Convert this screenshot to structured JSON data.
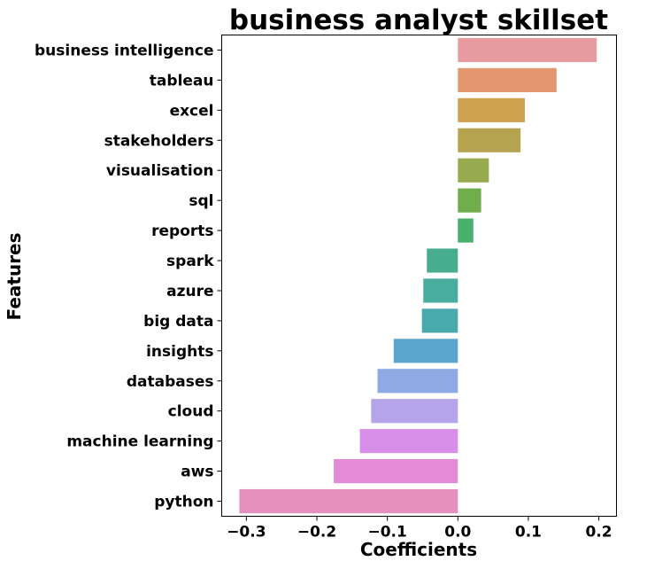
{
  "chart_data": {
    "type": "bar",
    "orientation": "horizontal",
    "title": "business analyst skillset",
    "xlabel": "Coefficients",
    "ylabel": "Features",
    "xlim": [
      -0.335,
      0.225
    ],
    "xticks": [
      -0.3,
      -0.2,
      -0.1,
      0.0,
      0.1,
      0.2
    ],
    "xtick_labels": [
      "−0.3",
      "−0.2",
      "−0.1",
      "0.0",
      "0.1",
      "0.2"
    ],
    "grid": false,
    "legend": "none",
    "categories": [
      "business intelligence",
      "tableau",
      "excel",
      "stakeholders",
      "visualisation",
      "sql",
      "reports",
      "spark",
      "azure",
      "big data",
      "insights",
      "databases",
      "cloud",
      "machine learning",
      "aws",
      "python"
    ],
    "values": [
      0.197,
      0.14,
      0.095,
      0.089,
      0.044,
      0.033,
      0.022,
      -0.044,
      -0.049,
      -0.051,
      -0.091,
      -0.114,
      -0.123,
      -0.139,
      -0.176,
      -0.31
    ],
    "colors": [
      "#e89aa1",
      "#e4966f",
      "#cfa04f",
      "#b5a34f",
      "#97aa4f",
      "#6fad4d",
      "#4aaf6d",
      "#47ad8e",
      "#48ad9f",
      "#4aa9ad",
      "#5aa5cb",
      "#8ea9e4",
      "#b6a4ea",
      "#d68ee8",
      "#e58bd5",
      "#e590bd"
    ]
  }
}
